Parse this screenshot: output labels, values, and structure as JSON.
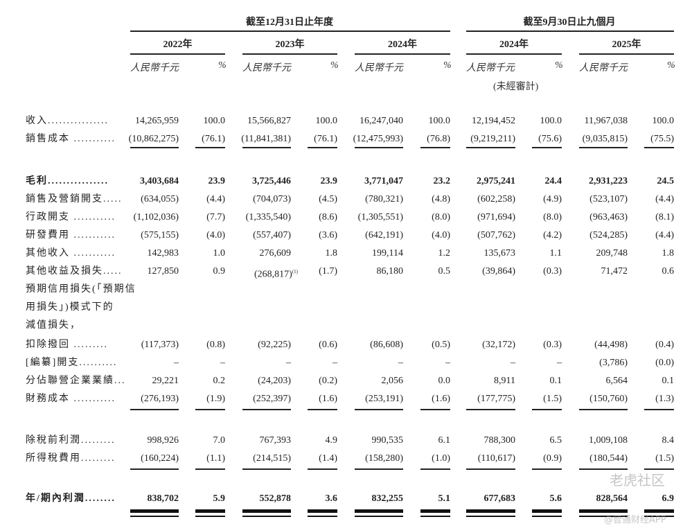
{
  "header": {
    "group_year": "截至12月31日止年度",
    "group_nine_months": "截至9月30日止九個月",
    "years": [
      "2022年",
      "2023年",
      "2024年",
      "2024年",
      "2025年"
    ],
    "unit_amount": "人民幣千元",
    "unit_pct": "%",
    "unaudited_note": "(未經審計)"
  },
  "rows": [
    {
      "label": "收入................",
      "values": [
        "14,265,959",
        "100.0",
        "15,566,827",
        "100.0",
        "16,247,040",
        "100.0",
        "12,194,452",
        "100.0",
        "11,967,038",
        "100.0"
      ]
    },
    {
      "label": "銷售成本 ...........",
      "values": [
        "(10,862,275)",
        "(76.1)",
        "(11,841,381)",
        "(76.1)",
        "(12,475,993)",
        "(76.8)",
        "(9,219,211)",
        "(75.6)",
        "(9,035,815)",
        "(75.5)"
      ]
    },
    {
      "label": "毛利................",
      "bold": true,
      "values": [
        "3,403,684",
        "23.9",
        "3,725,446",
        "23.9",
        "3,771,047",
        "23.2",
        "2,975,241",
        "24.4",
        "2,931,223",
        "24.5"
      ]
    },
    {
      "label": "銷售及營銷開支.....",
      "values": [
        "(634,055)",
        "(4.4)",
        "(704,073)",
        "(4.5)",
        "(780,321)",
        "(4.8)",
        "(602,258)",
        "(4.9)",
        "(523,107)",
        "(4.4)"
      ]
    },
    {
      "label": "行政開支 ...........",
      "values": [
        "(1,102,036)",
        "(7.7)",
        "(1,335,540)",
        "(8.6)",
        "(1,305,551)",
        "(8.0)",
        "(971,694)",
        "(8.0)",
        "(963,463)",
        "(8.1)"
      ]
    },
    {
      "label": "研發費用 ...........",
      "values": [
        "(575,155)",
        "(4.0)",
        "(557,407)",
        "(3.6)",
        "(642,191)",
        "(4.0)",
        "(507,762)",
        "(4.2)",
        "(524,285)",
        "(4.4)"
      ]
    },
    {
      "label": "其他收入 ...........",
      "values": [
        "142,983",
        "1.0",
        "276,609",
        "1.8",
        "199,114",
        "1.2",
        "135,673",
        "1.1",
        "209,748",
        "1.8"
      ]
    },
    {
      "label": "其他收益及損失.....",
      "values": [
        "127,850",
        "0.9",
        "(268,817)",
        "(1.7)",
        "86,180",
        "0.5",
        "(39,864)",
        "(0.3)",
        "71,472",
        "0.6"
      ],
      "footnote_col": 2,
      "footnote": "(1)"
    },
    {
      "label": "預期信用損失(「預期信",
      "values": []
    },
    {
      "label": "  用損失」)模式下的",
      "values": []
    },
    {
      "label": "  減值損失，",
      "values": []
    },
    {
      "label": "  扣除撥回 .........",
      "values": [
        "(117,373)",
        "(0.8)",
        "(92,225)",
        "(0.6)",
        "(86,608)",
        "(0.5)",
        "(32,172)",
        "(0.3)",
        "(44,498)",
        "(0.4)"
      ]
    },
    {
      "label": "[編纂]開支..........",
      "values": [
        "–",
        "–",
        "–",
        "–",
        "–",
        "–",
        "–",
        "–",
        "(3,786)",
        "(0.0)"
      ]
    },
    {
      "label": "分佔聯營企業業績...",
      "values": [
        "29,221",
        "0.2",
        "(24,203)",
        "(0.2)",
        "2,056",
        "0.0",
        "8,911",
        "0.1",
        "6,564",
        "0.1"
      ]
    },
    {
      "label": "財務成本 ...........",
      "values": [
        "(276,193)",
        "(1.9)",
        "(252,397)",
        "(1.6)",
        "(253,191)",
        "(1.6)",
        "(177,775)",
        "(1.5)",
        "(150,760)",
        "(1.3)"
      ]
    },
    {
      "label": "除稅前利潤.........",
      "values": [
        "998,926",
        "7.0",
        "767,393",
        "4.9",
        "990,535",
        "6.1",
        "788,300",
        "6.5",
        "1,009,108",
        "8.4"
      ]
    },
    {
      "label": "所得稅費用.........",
      "values": [
        "(160,224)",
        "(1.1)",
        "(214,515)",
        "(1.4)",
        "(158,280)",
        "(1.0)",
        "(110,617)",
        "(0.9)",
        "(180,544)",
        "(1.5)"
      ]
    },
    {
      "label": "年/期內利潤........",
      "bold": true,
      "values": [
        "838,702",
        "5.9",
        "552,878",
        "3.6",
        "832,255",
        "5.1",
        "677,683",
        "5.6",
        "828,564",
        "6.9"
      ]
    }
  ],
  "watermarks": {
    "tiger": "老虎社区",
    "zhitong": "@智通财经APP"
  }
}
